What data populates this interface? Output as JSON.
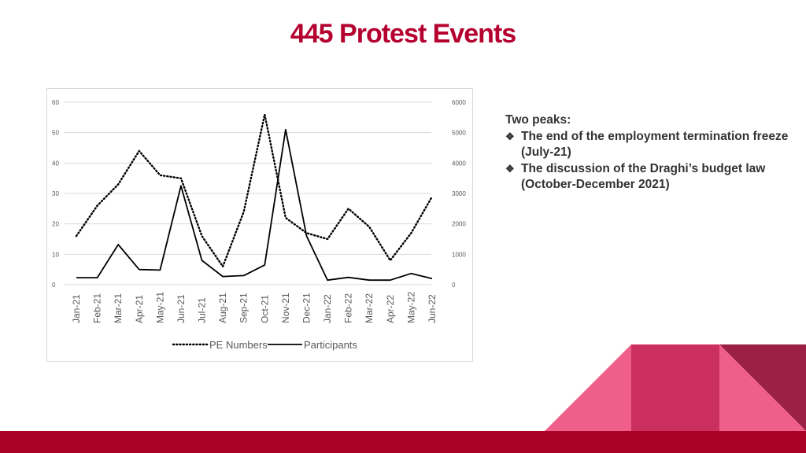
{
  "page": {
    "title": "445 Protest Events",
    "colors": {
      "title": "#b5002f",
      "bar": "#ab0027",
      "pink_light": "#ef5f8a",
      "pink_mid": "#cb2f5f",
      "maroon": "#9b2046"
    }
  },
  "notes": {
    "heading": "Two peaks:",
    "bullets": [
      "The end of the employment termination freeze (July-21)",
      "The discussion of the Draghi’s budget law (October-December 2021)"
    ]
  },
  "chart_data": {
    "type": "line",
    "categories": [
      "Jan-21",
      "Feb-21",
      "Mar-21",
      "Apr-21",
      "May-21",
      "Jun-21",
      "Jul-21",
      "Aug-21",
      "Sep-21",
      "Oct-21",
      "Nov-21",
      "Dec-21",
      "Jan-22",
      "Feb-22",
      "Mar-22",
      "Apr-22",
      "May-22",
      "Jun-22"
    ],
    "series": [
      {
        "name": "PE Numbers",
        "axis": "left",
        "style": "dotted",
        "values": [
          16,
          26,
          33,
          44,
          36,
          35,
          16,
          6,
          24,
          56,
          22,
          17,
          15,
          25,
          19,
          8,
          17,
          29
        ]
      },
      {
        "name": "Participants",
        "axis": "right",
        "style": "solid",
        "values": [
          230,
          230,
          1320,
          500,
          480,
          3250,
          800,
          270,
          300,
          650,
          5100,
          1600,
          150,
          240,
          150,
          150,
          370,
          200
        ]
      }
    ],
    "y_left": {
      "min": 0,
      "max": 60,
      "ticks": [
        0,
        10,
        20,
        30,
        40,
        50,
        60
      ]
    },
    "y_right": {
      "min": 0,
      "max": 6000,
      "ticks": [
        0,
        1000,
        2000,
        3000,
        4000,
        5000,
        6000
      ]
    },
    "grid": true,
    "legend": "bottom"
  }
}
